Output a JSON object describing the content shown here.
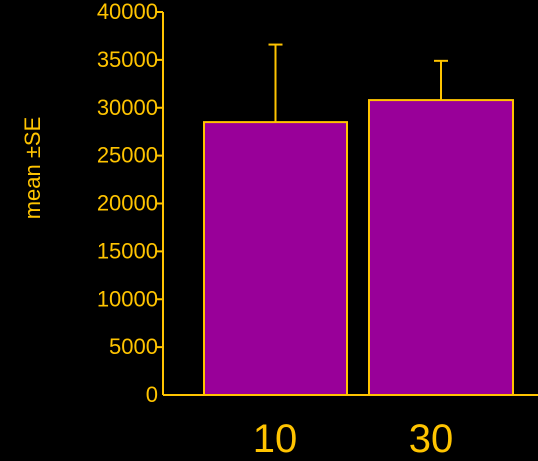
{
  "colors": {
    "background": "#000000",
    "axis": "#FFC400",
    "bar_fill": "#990099",
    "bar_edge": "#FFC400",
    "text": "#FFC400"
  },
  "chart_data": {
    "type": "bar",
    "categories": [
      "10",
      "30"
    ],
    "values": [
      28500,
      30800
    ],
    "errors": [
      8100,
      4100
    ],
    "error_style": "upper-only",
    "title": "",
    "xlabel": "",
    "ylabel": "mean ±SE",
    "ylim": [
      0,
      40000
    ],
    "yticks": [
      0,
      5000,
      10000,
      15000,
      20000,
      25000,
      30000,
      35000,
      40000
    ],
    "ytick_labels": [
      "0",
      "5000",
      "10000",
      "15000",
      "20000",
      "25000",
      "30000",
      "35000",
      "40000"
    ],
    "grid": false,
    "legend": "none"
  }
}
